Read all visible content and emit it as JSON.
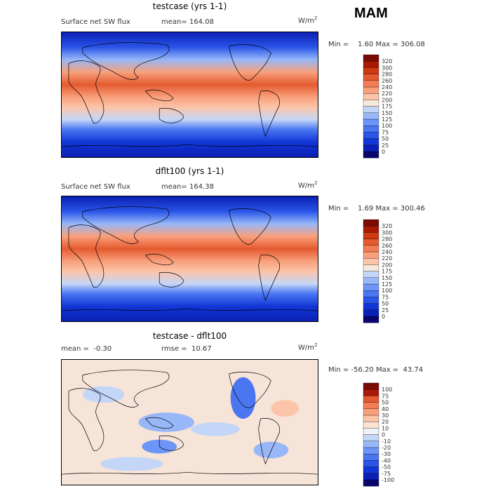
{
  "season": "MAM",
  "chart_data": [
    {
      "type": "heatmap",
      "title": "testcase (yrs 1-1)",
      "field_label": "Surface net SW flux",
      "stat_label": "mean=",
      "stat_value": "164.08",
      "unit_base": "W/m",
      "unit_exp": "2",
      "min_label": "Min =",
      "min_value": "1.60",
      "max_label": "Max =",
      "max_value": "306.08",
      "levels": [
        "0",
        "25",
        "50",
        "75",
        "100",
        "125",
        "150",
        "175",
        "200",
        "220",
        "240",
        "260",
        "280",
        "300",
        "320"
      ],
      "colors": [
        "#08056e",
        "#0a1fb4",
        "#1236d6",
        "#2a55e8",
        "#4a76f2",
        "#6d95f7",
        "#97b7f8",
        "#c4d6f7",
        "#f6e8dc",
        "#fcc4a8",
        "#f8a07c",
        "#f27c55",
        "#e55a2f",
        "#cf3a12",
        "#a81a06",
        "#7a0a03"
      ]
    },
    {
      "type": "heatmap",
      "title": "dflt100 (yrs 1-1)",
      "field_label": "Surface net SW flux",
      "stat_label": "mean=",
      "stat_value": "164.38",
      "unit_base": "W/m",
      "unit_exp": "2",
      "min_label": "Min =",
      "min_value": "1.69",
      "max_label": "Max =",
      "max_value": "300.46",
      "levels": [
        "0",
        "25",
        "50",
        "75",
        "100",
        "125",
        "150",
        "175",
        "200",
        "220",
        "240",
        "260",
        "280",
        "300",
        "320"
      ],
      "colors": [
        "#08056e",
        "#0a1fb4",
        "#1236d6",
        "#2a55e8",
        "#4a76f2",
        "#6d95f7",
        "#97b7f8",
        "#c4d6f7",
        "#f6e8dc",
        "#fcc4a8",
        "#f8a07c",
        "#f27c55",
        "#e55a2f",
        "#cf3a12",
        "#a81a06",
        "#7a0a03"
      ]
    },
    {
      "type": "heatmap",
      "title": "testcase - dflt100",
      "mean_label": "mean =",
      "mean_value": "-0.30",
      "rmse_label": "rmse =",
      "rmse_value": "10.67",
      "unit_base": "W/m",
      "unit_exp": "2",
      "min_label": "Min =",
      "min_value": "-56.20",
      "max_label": "Max =",
      "max_value": "43.74",
      "levels": [
        "-100",
        "-75",
        "-50",
        "-40",
        "-30",
        "-20",
        "-10",
        "0",
        "10",
        "20",
        "30",
        "40",
        "50",
        "75",
        "100"
      ],
      "colors": [
        "#08056e",
        "#0a1fb4",
        "#1236d6",
        "#2a55e8",
        "#4a76f2",
        "#6d95f7",
        "#97b7f8",
        "#c4d6f7",
        "#eef1f7",
        "#fce3d2",
        "#fcc4a8",
        "#f8a07c",
        "#f27c55",
        "#e55a2f",
        "#a81a06",
        "#7a0a03"
      ]
    }
  ]
}
